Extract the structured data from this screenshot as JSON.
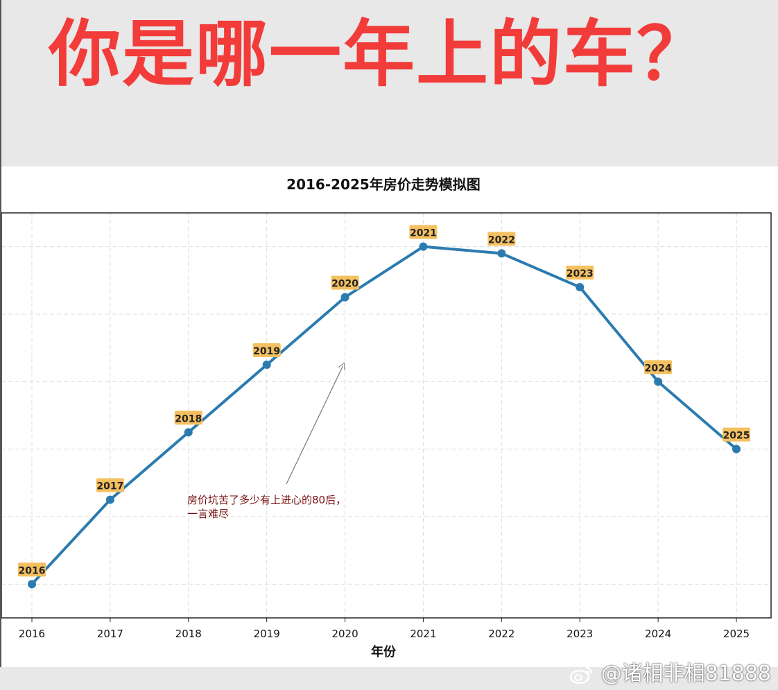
{
  "headline": "你是哪一年上的车？",
  "watermark": "@诸相非相81888",
  "chart_data": {
    "type": "line",
    "title": "2016-2025年房价走势模拟图",
    "xlabel": "年份",
    "ylabel": "",
    "x": [
      "2016",
      "2017",
      "2018",
      "2019",
      "2020",
      "2021",
      "2022",
      "2023",
      "2024",
      "2025"
    ],
    "series": [
      {
        "values": [
          0,
          1.25,
          2.25,
          3.25,
          4.25,
          5.0,
          4.9,
          4.4,
          3.0,
          2.0
        ]
      }
    ],
    "point_labels": [
      "2016",
      "2017",
      "2018",
      "2019",
      "2020",
      "2021",
      "2022",
      "2023",
      "2024",
      "2025"
    ],
    "ylim": [
      -0.5,
      5.5
    ],
    "grid": true,
    "annotation": {
      "text_line1": "房价坑苦了多少有上进心的80后，",
      "text_line2": "一言难尽",
      "points_to_x": "2020",
      "points_to_y": 3.5
    },
    "colors": {
      "line": "#2b7bb0",
      "label_bg": "#f5c060",
      "annotation_text": "#7a1010",
      "headline": "#f23c3a"
    }
  }
}
